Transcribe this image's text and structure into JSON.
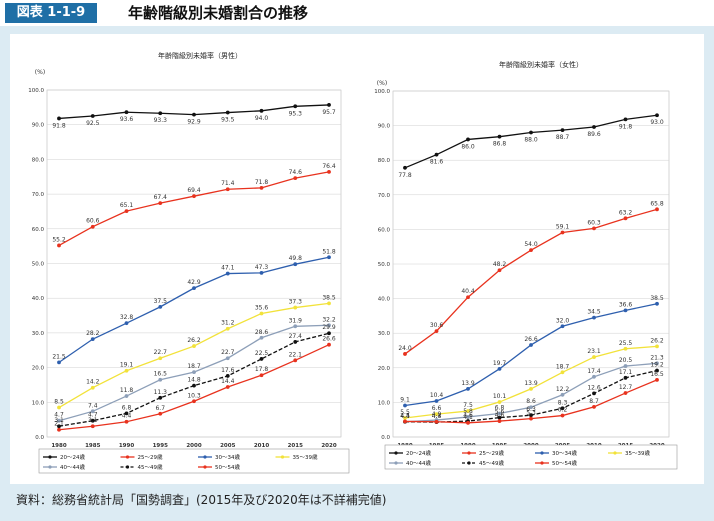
{
  "header": {
    "figure_label": "図表 1-1-9",
    "title": "年齢階級別未婚割合の推移"
  },
  "source": "資料：総務省統計局「国勢調査」(2015年及び2020年は不詳補完値)",
  "chart_data": [
    {
      "type": "line",
      "title": "年齢階級別未婚率（男性）",
      "ylabel": "(%)",
      "ylim": [
        0,
        100
      ],
      "yticks": [
        "0.0",
        "10.0",
        "20.0",
        "30.0",
        "40.0",
        "50.0",
        "60.0",
        "70.0",
        "80.0",
        "90.0",
        "100.0"
      ],
      "x": [
        "1980",
        "1985",
        "1990",
        "1995",
        "2000",
        "2005",
        "2010",
        "2015",
        "2020"
      ],
      "series": [
        {
          "name": "20～24歳",
          "color": "#111111",
          "values": [
            91.8,
            92.5,
            93.6,
            93.3,
            92.9,
            93.5,
            94.0,
            95.3,
            95.7
          ]
        },
        {
          "name": "25～29歳",
          "color": "#e8321e",
          "values": [
            55.2,
            60.6,
            65.1,
            67.4,
            69.4,
            71.4,
            71.8,
            74.6,
            76.4
          ]
        },
        {
          "name": "30～34歳",
          "color": "#2e5fae",
          "values": [
            21.5,
            28.2,
            32.8,
            37.5,
            42.9,
            47.1,
            47.3,
            49.8,
            51.8
          ]
        },
        {
          "name": "35～39歳",
          "color": "#f2e23a",
          "values": [
            8.5,
            14.2,
            19.1,
            22.7,
            26.2,
            31.2,
            35.6,
            37.3,
            38.5
          ]
        },
        {
          "name": "40～44歳",
          "color": "#8d9fb8",
          "values": [
            4.7,
            7.4,
            11.8,
            16.5,
            18.7,
            22.7,
            28.6,
            31.9,
            32.2
          ]
        },
        {
          "name": "45～49歳",
          "color": "#111111",
          "dash": true,
          "values": [
            3.1,
            4.7,
            6.8,
            11.3,
            14.8,
            17.6,
            22.5,
            27.4,
            29.9
          ]
        },
        {
          "name": "50～54歳",
          "color": "#e8321e",
          "values": [
            2.1,
            3.1,
            4.4,
            6.7,
            10.3,
            14.4,
            17.8,
            22.1,
            26.6
          ]
        }
      ],
      "point_labels": [
        [
          "91.8",
          "92.5",
          "93.6",
          "93.3",
          "92.9",
          "93.5",
          "94.0",
          "95.3",
          "95.7"
        ],
        [
          "55.2",
          "60.6",
          "65.1",
          "67.4",
          "69.4",
          "71.4",
          "71.8",
          "74.6",
          "76.4"
        ],
        [
          "21.5",
          "28.2",
          "32.8",
          "37.5",
          "42.9",
          "47.1",
          "47.3",
          "49.8",
          "51.8"
        ],
        [
          "8.5",
          "14.2",
          "19.1",
          "22.7",
          "26.2",
          "31.2",
          "35.6",
          "37.3",
          "38.5"
        ],
        [
          "4.7",
          "7.4",
          "11.8",
          "16.5",
          "18.7",
          "22.7",
          "28.6",
          "31.9",
          "32.2"
        ],
        [
          "3.1",
          "4.7",
          "6.8",
          "11.3",
          "14.8",
          "17.6",
          "22.5",
          "27.4",
          "29.9"
        ],
        [
          "2.1",
          "3.1",
          "4.4",
          "6.7",
          "10.3",
          "14.4",
          "17.8",
          "22.1",
          "26.6"
        ]
      ]
    },
    {
      "type": "line",
      "title": "年齢階級別未婚率（女性）",
      "ylabel": "(%)",
      "ylim": [
        0,
        100
      ],
      "yticks": [
        "0.0",
        "10.0",
        "20.0",
        "30.0",
        "40.0",
        "50.0",
        "60.0",
        "70.0",
        "80.0",
        "90.0",
        "100.0"
      ],
      "x": [
        "1980",
        "1985",
        "1990",
        "1995",
        "2000",
        "2005",
        "2010",
        "2015",
        "2020"
      ],
      "series": [
        {
          "name": "20～24歳",
          "color": "#111111",
          "values": [
            77.8,
            81.6,
            86.0,
            86.8,
            88.0,
            88.7,
            89.6,
            91.8,
            93.0
          ]
        },
        {
          "name": "25～29歳",
          "color": "#e8321e",
          "values": [
            24.0,
            30.6,
            40.4,
            48.2,
            54.0,
            59.1,
            60.3,
            63.2,
            65.8
          ]
        },
        {
          "name": "30～34歳",
          "color": "#2e5fae",
          "values": [
            9.1,
            10.4,
            13.9,
            19.7,
            26.6,
            32.0,
            34.5,
            36.6,
            38.5
          ]
        },
        {
          "name": "35～39歳",
          "color": "#f2e23a",
          "values": [
            5.5,
            6.6,
            7.5,
            10.1,
            13.9,
            18.7,
            23.1,
            25.5,
            26.2
          ]
        },
        {
          "name": "40～44歳",
          "color": "#8d9fb8",
          "values": [
            4.4,
            4.9,
            5.8,
            6.8,
            8.6,
            12.2,
            17.4,
            20.5,
            21.3
          ]
        },
        {
          "name": "45～49歳",
          "color": "#111111",
          "dash": true,
          "values": [
            4.4,
            4.3,
            4.6,
            5.6,
            6.3,
            8.3,
            12.6,
            17.1,
            19.2
          ]
        },
        {
          "name": "50～54歳",
          "color": "#e8321e",
          "values": [
            4.5,
            4.4,
            4.1,
            4.6,
            5.3,
            6.2,
            8.7,
            12.7,
            16.5
          ]
        }
      ],
      "point_labels": [
        [
          "77.8",
          "81.6",
          "86.0",
          "86.8",
          "88.0",
          "88.7",
          "89.6",
          "91.8",
          "93.0"
        ],
        [
          "24.0",
          "30.6",
          "40.4",
          "48.2",
          "54.0",
          "59.1",
          "60.3",
          "63.2",
          "65.8"
        ],
        [
          "9.1",
          "10.4",
          "13.9",
          "19.7",
          "26.6",
          "32.0",
          "34.5",
          "36.6",
          "38.5"
        ],
        [
          "5.5",
          "6.6",
          "7.5",
          "10.1",
          "13.9",
          "18.7",
          "23.1",
          "25.5",
          "26.2"
        ],
        [
          "4.4",
          "4.9",
          "5.8",
          "6.8",
          "8.6",
          "12.2",
          "17.4",
          "20.5",
          "21.3"
        ],
        [
          "4.4",
          "4.3",
          "4.6",
          "5.6",
          "6.3",
          "8.3",
          "12.6",
          "17.1",
          "19.2"
        ],
        [
          "4.5",
          "4.4",
          "4.1",
          "4.6",
          "5.3",
          "6.2",
          "8.7",
          "12.7",
          "16.5"
        ]
      ]
    }
  ]
}
